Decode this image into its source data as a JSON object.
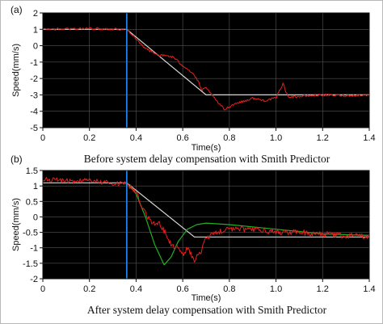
{
  "chart_data": [
    {
      "panel_label": "(a)",
      "type": "line",
      "caption": "Before system delay compensation with Smith Predictor",
      "xlabel": "Time(s)",
      "ylabel": "Speed(mm/s)",
      "xlim": [
        0,
        1.4
      ],
      "ylim": [
        -5,
        2
      ],
      "xticks": [
        "0",
        "0.2",
        "0.4",
        "0.6",
        "0.8",
        "1.0",
        "1.2",
        "1.4"
      ],
      "yticks": [
        "2",
        "1",
        "0",
        "-1",
        "-2",
        "-3",
        "-4",
        "-5"
      ],
      "background": "#000000",
      "grid": true,
      "vline": {
        "x": 0.36,
        "color": "#1e90ff"
      },
      "series": [
        {
          "color": "#d8d8d8",
          "noise": 0,
          "x": [
            0,
            0.36,
            0.7,
            1.4
          ],
          "y": [
            1.0,
            1.0,
            -3.0,
            -3.0
          ]
        },
        {
          "color": "#e8201c",
          "noise": 0.07,
          "x": [
            0,
            0.2,
            0.36,
            0.39,
            0.42,
            0.45,
            0.48,
            0.5,
            0.53,
            0.56,
            0.59,
            0.62,
            0.65,
            0.67,
            0.68,
            0.7,
            0.72,
            0.74,
            0.76,
            0.78,
            0.8,
            0.83,
            0.86,
            0.9,
            0.95,
            1.0,
            1.03,
            1.05,
            1.1,
            1.2,
            1.3,
            1.4
          ],
          "y": [
            1.0,
            1.05,
            1.0,
            0.6,
            0.1,
            -0.25,
            -0.45,
            -0.6,
            -0.6,
            -0.7,
            -1.1,
            -1.4,
            -1.8,
            -2.3,
            -2.7,
            -2.6,
            -2.9,
            -3.3,
            -3.6,
            -3.9,
            -3.7,
            -3.5,
            -3.4,
            -3.2,
            -3.35,
            -3.2,
            -2.3,
            -3.1,
            -3.1,
            -3.0,
            -3.05,
            -3.0
          ]
        }
      ]
    },
    {
      "panel_label": "(b)",
      "type": "line",
      "caption": "After system delay compensation with Smith Predictor",
      "xlabel": "Time(s)",
      "ylabel": "Speed(mm/s)",
      "xlim": [
        0,
        1.4
      ],
      "ylim": [
        -2,
        1.5
      ],
      "xticks": [
        "0",
        "0.2",
        "0.4",
        "0.6",
        "0.8",
        "1.0",
        "1.2",
        "1.4"
      ],
      "yticks": [
        "1.5",
        "1",
        "0.5",
        "0",
        "-0.5",
        "-1",
        "-1.5",
        "-2"
      ],
      "background": "#000000",
      "grid": true,
      "vline": {
        "x": 0.36,
        "color": "#1e90ff"
      },
      "series": [
        {
          "color": "#d8d8d8",
          "noise": 0,
          "x": [
            0,
            0.36,
            0.65,
            1.4
          ],
          "y": [
            1.1,
            1.1,
            -0.65,
            -0.65
          ]
        },
        {
          "color": "#22b022",
          "noise": 0,
          "x": [
            0.36,
            0.4,
            0.44,
            0.48,
            0.52,
            0.55,
            0.58,
            0.62,
            0.66,
            0.7,
            0.8,
            1.0,
            1.2,
            1.4
          ],
          "y": [
            1.1,
            0.75,
            0.0,
            -0.9,
            -1.55,
            -1.3,
            -0.8,
            -0.4,
            -0.25,
            -0.2,
            -0.25,
            -0.4,
            -0.55,
            -0.6
          ]
        },
        {
          "color": "#e8201c",
          "noise": 0.09,
          "x": [
            0,
            0.2,
            0.36,
            0.4,
            0.42,
            0.45,
            0.48,
            0.5,
            0.52,
            0.55,
            0.58,
            0.6,
            0.62,
            0.65,
            0.68,
            0.7,
            0.72,
            0.75,
            0.8,
            0.9,
            1.0,
            1.1,
            1.2,
            1.3,
            1.4
          ],
          "y": [
            1.2,
            1.15,
            1.05,
            0.8,
            0.4,
            -0.05,
            -0.2,
            -0.2,
            -0.45,
            -0.9,
            -1.0,
            -1.2,
            -1.0,
            -1.4,
            -1.1,
            -0.7,
            -0.6,
            -0.5,
            -0.4,
            -0.4,
            -0.5,
            -0.5,
            -0.55,
            -0.6,
            -0.65
          ]
        }
      ]
    }
  ]
}
